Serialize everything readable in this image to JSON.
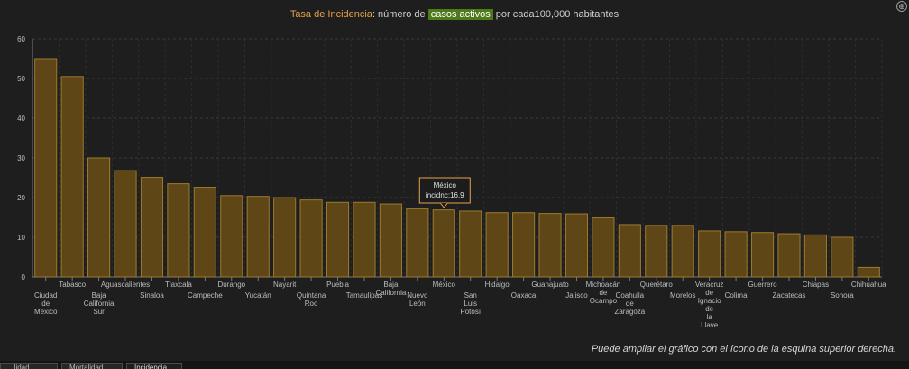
{
  "title": {
    "part1": "Tasa de Incidencia",
    "part2": ": número de ",
    "part3": "casos activos",
    "part4": " por cada100,000 habitantes"
  },
  "expand_icon": "expand-icon",
  "note": "Puede ampliar el gráfico con el ícono de la esquina superior derecha.",
  "tabs": [
    "...lidad",
    "Mortalidad",
    "Incidencia"
  ],
  "tooltip": {
    "line1": "México",
    "line2": "incidnc:16.9"
  },
  "colors": {
    "bar": "#5e4617",
    "bar_border": "#9d7b2e",
    "accent": "#e6a04b",
    "highlight": "#4f7a1a"
  },
  "chart_data": {
    "type": "bar",
    "categories": [
      "Ciudad de México",
      "Tabasco",
      "Baja California Sur",
      "Aguascalientes",
      "Sinaloa",
      "Tlaxcala",
      "Campeche",
      "Durango",
      "Yucatán",
      "Nayarit",
      "Quintana Roo",
      "Puebla",
      "Tamaulipas",
      "Baja California",
      "Nuevo León",
      "México",
      "San Luis Potosí",
      "Hidalgo",
      "Oaxaca",
      "Guanajuato",
      "Jalisco",
      "Michoacán de Ocampo",
      "Coahuila de Zaragoza",
      "Querétaro",
      "Morelos",
      "Veracruz de Ignacio de la Llave",
      "Colima",
      "Guerrero",
      "Zacatecas",
      "Chiapas",
      "Sonora",
      "Chihuahua"
    ],
    "values": [
      55.0,
      50.5,
      30.0,
      26.8,
      25.1,
      23.5,
      22.6,
      20.5,
      20.3,
      20.0,
      19.4,
      18.8,
      18.8,
      18.4,
      17.2,
      16.9,
      16.6,
      16.2,
      16.2,
      16.0,
      15.9,
      14.9,
      13.2,
      13.0,
      13.0,
      11.6,
      11.4,
      11.2,
      10.9,
      10.6,
      10.0,
      2.4
    ],
    "ylim": [
      0,
      60
    ],
    "yticks": [
      0,
      10,
      20,
      30,
      40,
      50,
      60
    ],
    "grid": true,
    "label_rows": [
      1,
      0,
      1,
      0,
      1,
      0,
      1,
      0,
      1,
      0,
      1,
      0,
      1,
      0,
      1,
      0,
      1,
      0,
      1,
      0,
      1,
      0,
      1,
      0,
      1,
      0,
      1,
      0,
      1,
      0,
      1,
      0
    ],
    "label_lines": [
      [
        "Ciudad",
        "de",
        "México"
      ],
      [
        "Tabasco"
      ],
      [
        "Baja",
        "California",
        "Sur"
      ],
      [
        "Aguascalientes"
      ],
      [
        "Sinaloa"
      ],
      [
        "Tlaxcala"
      ],
      [
        "Campeche"
      ],
      [
        "Durango"
      ],
      [
        "Yucatán"
      ],
      [
        "Nayarit"
      ],
      [
        "Quintana",
        "Roo"
      ],
      [
        "Puebla"
      ],
      [
        "Tamaulipas"
      ],
      [
        "Baja",
        "California"
      ],
      [
        "Nuevo",
        "León"
      ],
      [
        "México"
      ],
      [
        "San",
        "Luis",
        "Potosí"
      ],
      [
        "Hidalgo"
      ],
      [
        "Oaxaca"
      ],
      [
        "Guanajuato"
      ],
      [
        "Jalisco"
      ],
      [
        "Michoacán",
        "de",
        "Ocampo"
      ],
      [
        "Coahuila",
        "de",
        "Zaragoza"
      ],
      [
        "Querétaro"
      ],
      [
        "Morelos"
      ],
      [
        "Veracruz",
        "de",
        "Ignacio",
        "de",
        "la",
        "Llave"
      ],
      [
        "Colima"
      ],
      [
        "Guerrero"
      ],
      [
        "Zacatecas"
      ],
      [
        "Chiapas"
      ],
      [
        "Sonora"
      ],
      [
        "Chihuahua"
      ]
    ]
  }
}
